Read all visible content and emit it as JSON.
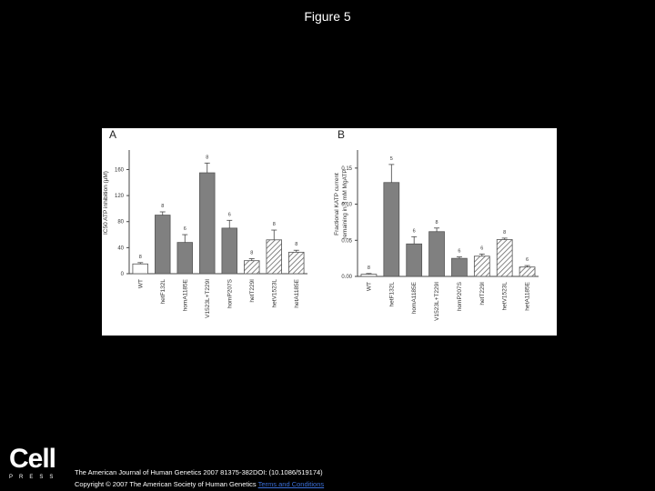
{
  "slide_title": "Figure 5",
  "chart_data": [
    {
      "type": "bar",
      "panel_label": "A",
      "ylabel": [
        "IC50 ATP inhibition (μM)"
      ],
      "categories": [
        "WT",
        "hetF132L",
        "homA1185E",
        "V1523L+T229I",
        "homP207S",
        "hetT229I",
        "hetV1523L",
        "hetA1185E"
      ],
      "values": [
        15,
        90,
        48,
        155,
        70,
        20,
        52,
        33
      ],
      "errors": [
        2,
        5,
        12,
        15,
        12,
        3,
        15,
        3
      ],
      "n_labels": [
        "8",
        "8",
        "6",
        "8",
        "6",
        "8",
        "8",
        "8"
      ],
      "styles": [
        "open",
        "solid",
        "solid",
        "solid",
        "solid",
        "hatched",
        "hatched",
        "hatched"
      ],
      "color": "#808080",
      "ylim": [
        0,
        190
      ],
      "yticks": [
        0,
        40,
        80,
        120,
        160
      ]
    },
    {
      "type": "bar",
      "panel_label": "B",
      "ylabel": [
        "Fractional KATP current",
        "remaining in 3 mM MgATP"
      ],
      "categories": [
        "WT",
        "hetF132L",
        "homA1185E",
        "V1523L+T229I",
        "homP207S",
        "hetT229I",
        "hetV1523L",
        "hetA1185E"
      ],
      "values": [
        0.003,
        0.13,
        0.045,
        0.062,
        0.025,
        0.028,
        0.051,
        0.013
      ],
      "errors": [
        0.001,
        0.025,
        0.01,
        0.005,
        0.002,
        0.003,
        0.002,
        0.002
      ],
      "n_labels": [
        "8",
        "5",
        "6",
        "8",
        "6",
        "6",
        "8",
        "6"
      ],
      "styles": [
        "open",
        "solid",
        "solid",
        "solid",
        "solid",
        "hatched",
        "hatched",
        "hatched"
      ],
      "color": "#808080",
      "ylim": [
        0,
        0.175
      ],
      "yticks": [
        {
          "value": 0,
          "label": "0.00"
        },
        {
          "value": 0.05,
          "label": "0.05"
        },
        {
          "value": 0.1,
          "label": "0.10"
        },
        {
          "value": 0.15,
          "label": "0.15"
        }
      ]
    }
  ],
  "footer": {
    "logo": "Cell",
    "logo_sub": "PRESS",
    "citation": "The American Journal of Human Genetics 2007 81375-382DOI: (10.1086/519174)",
    "copyright": "Copyright © 2007 The American Society of Human Genetics",
    "link": "Terms and Conditions"
  }
}
